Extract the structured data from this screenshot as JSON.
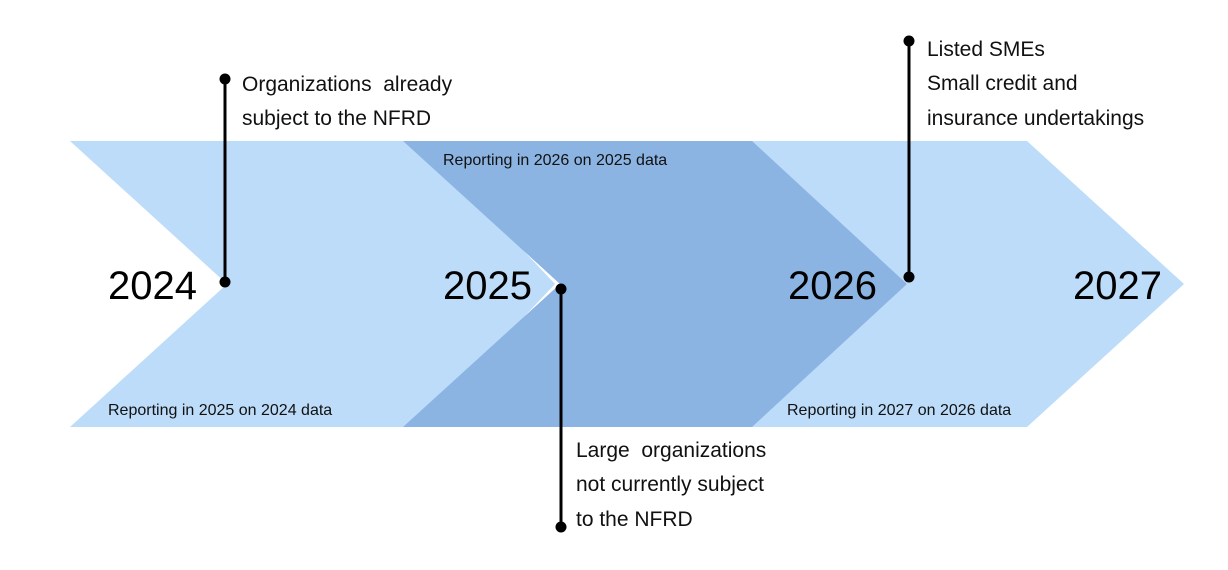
{
  "colors": {
    "chevron_light": "#bcdcf9",
    "chevron_mid": "#8bb4e2",
    "text": "#111111",
    "leader": "#000000"
  },
  "timeline": {
    "years": [
      "2024",
      "2025",
      "2026",
      "2027"
    ],
    "reporting_labels": {
      "phase_2024": "Reporting in 2025 on 2024 data",
      "phase_2025": "Reporting in 2026 on 2025 data",
      "phase_2026": "Reporting in 2027 on 2026 data"
    },
    "callouts": {
      "phase_2024": [
        "Organizations  already",
        "subject to the NFRD"
      ],
      "phase_2025": [
        "Large  organizations",
        "not currently subject",
        "to the NFRD"
      ],
      "phase_2026": [
        "Listed SMEs",
        "Small credit and",
        "insurance undertakings"
      ]
    }
  }
}
